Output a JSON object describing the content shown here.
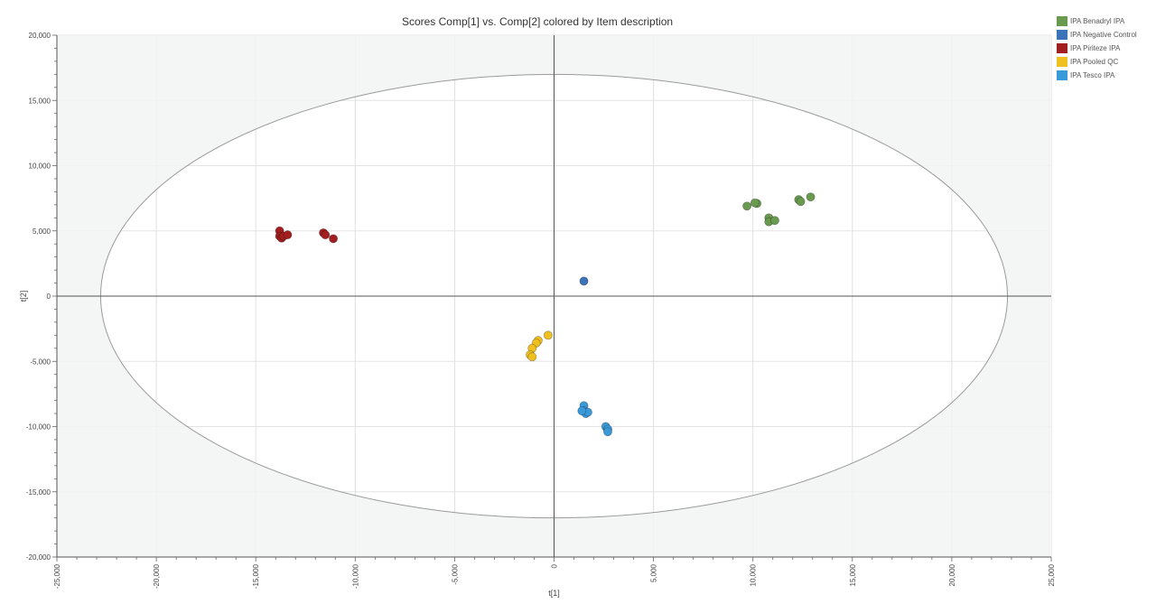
{
  "chart_data": {
    "type": "scatter",
    "title": "Scores Comp[1] vs. Comp[2] colored by Item description",
    "xlabel": "t[1]",
    "ylabel": "t[2]",
    "xlim": [
      -25000,
      25000
    ],
    "ylim": [
      -20000,
      20000
    ],
    "xticks": [
      "-25,000",
      "-20,000",
      "-15,000",
      "-10,000",
      "-5,000",
      "0",
      "5,000",
      "10,000",
      "15,000",
      "20,000",
      "25,000"
    ],
    "yticks": [
      "20,000",
      "15,000",
      "10,000",
      "5,000",
      "0",
      "-5,000",
      "-10,000",
      "-15,000",
      "-20,000"
    ],
    "grid": true,
    "legend_position": "top-right",
    "ellipse": {
      "cx": 0,
      "cy": 0,
      "rx": 22800,
      "ry": 17000
    },
    "series": [
      {
        "name": "IPA Benadryl IPA",
        "color": "#6a9a4f",
        "points": [
          [
            9700,
            6900
          ],
          [
            10200,
            7100
          ],
          [
            10100,
            7150
          ],
          [
            10800,
            6000
          ],
          [
            10800,
            5700
          ],
          [
            11100,
            5800
          ],
          [
            12300,
            7400
          ],
          [
            12400,
            7250
          ],
          [
            12900,
            7600
          ]
        ]
      },
      {
        "name": "IPA Negative Control",
        "color": "#3b73b9",
        "points": [
          [
            1500,
            1150
          ]
        ]
      },
      {
        "name": "IPA Piriteze IPA",
        "color": "#a31f1f",
        "points": [
          [
            -13800,
            5000
          ],
          [
            -13800,
            4600
          ],
          [
            -13700,
            4450
          ],
          [
            -13600,
            4600
          ],
          [
            -13400,
            4700
          ],
          [
            -11600,
            4850
          ],
          [
            -11500,
            4700
          ],
          [
            -11100,
            4400
          ]
        ]
      },
      {
        "name": "IPA Pooled QC",
        "color": "#f0c020",
        "points": [
          [
            -300,
            -3000
          ],
          [
            -800,
            -3400
          ],
          [
            -900,
            -3600
          ],
          [
            -1100,
            -4000
          ],
          [
            -1200,
            -4500
          ],
          [
            -1100,
            -4650
          ]
        ]
      },
      {
        "name": "IPA Tesco IPA",
        "color": "#3a9ad9",
        "points": [
          [
            1500,
            -8400
          ],
          [
            1500,
            -8800
          ],
          [
            1600,
            -9000
          ],
          [
            1700,
            -8900
          ],
          [
            1400,
            -8800
          ],
          [
            2600,
            -10000
          ],
          [
            2700,
            -10200
          ],
          [
            2700,
            -10400
          ]
        ]
      }
    ]
  }
}
